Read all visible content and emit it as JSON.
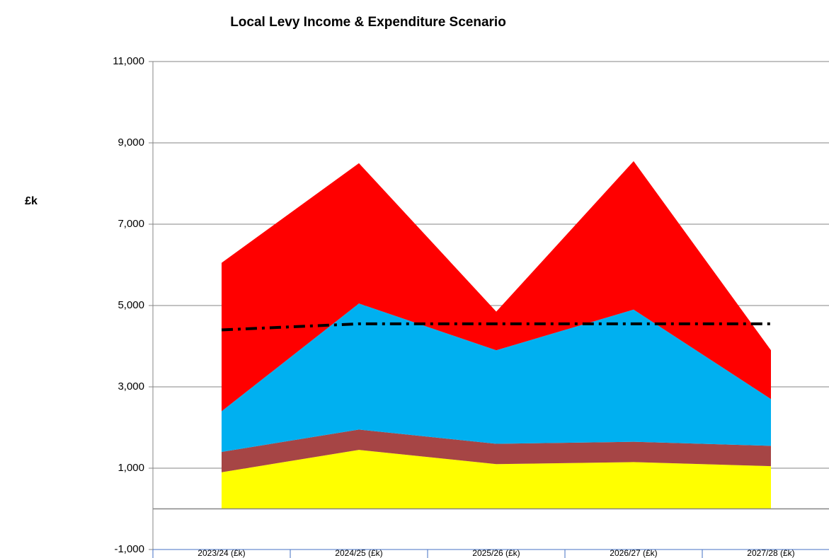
{
  "chart_data": {
    "type": "stacked_area",
    "title": "Local Levy Income & Expenditure Scenario",
    "y_label": "£k",
    "categories": [
      "2023/24 (£k)",
      "2024/25 (£k)",
      "2025/26 (£k)",
      "2026/27 (£k)",
      "2027/28 (£k)"
    ],
    "series": [
      {
        "color": "#ffff00",
        "values": [
          900,
          1450,
          1100,
          1150,
          1050
        ]
      },
      {
        "color": "#a64545",
        "values": [
          500,
          500,
          500,
          500,
          500
        ]
      },
      {
        "color": "#00b0f0",
        "values": [
          1000,
          3100,
          2300,
          3250,
          1150
        ]
      },
      {
        "color": "#ff0000",
        "values": [
          3650,
          3450,
          950,
          3650,
          1200
        ]
      }
    ],
    "line": {
      "color": "#000000",
      "style": "dashdot",
      "values": [
        4400,
        4550,
        4550,
        4550,
        4550
      ]
    },
    "ylim": [
      -1000,
      11000
    ],
    "yticks": [
      {
        "value": -1000,
        "label": "-1,000"
      },
      {
        "value": 1000,
        "label": "1,000"
      },
      {
        "value": 3000,
        "label": "3,000"
      },
      {
        "value": 5000,
        "label": "5,000"
      },
      {
        "value": 7000,
        "label": "7,000"
      },
      {
        "value": 9000,
        "label": "9,000"
      },
      {
        "value": 11000,
        "label": "11,000"
      }
    ],
    "grid": true
  }
}
